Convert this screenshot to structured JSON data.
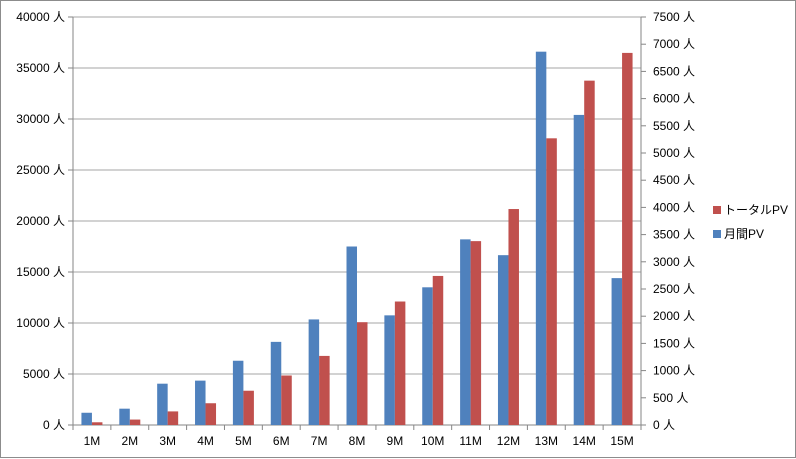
{
  "chart_data": {
    "type": "bar",
    "categories": [
      "1M",
      "2M",
      "3M",
      "4M",
      "5M",
      "6M",
      "7M",
      "8M",
      "9M",
      "10M",
      "11M",
      "12M",
      "13M",
      "14M",
      "15M"
    ],
    "series": [
      {
        "name": "月間PV",
        "axis": "left",
        "color": "#4F81BD",
        "values": [
          1200,
          1600,
          4050,
          4350,
          6300,
          8150,
          10350,
          17500,
          10750,
          13500,
          18200,
          16650,
          36600,
          30400,
          14400
        ]
      },
      {
        "name": "トータルPV",
        "axis": "right",
        "color": "#C0504D",
        "values": [
          50,
          100,
          250,
          400,
          630,
          910,
          1270,
          1890,
          2270,
          2740,
          3380,
          3970,
          5270,
          6330,
          6840
        ]
      }
    ],
    "y_left": {
      "min": 0,
      "max": 40000,
      "step": 5000,
      "unit": "人"
    },
    "y_right": {
      "min": 0,
      "max": 7500,
      "step": 500,
      "unit": "人"
    },
    "grid": true,
    "legend": {
      "position": "right",
      "order": [
        "トータルPV",
        "月間PV"
      ]
    }
  }
}
